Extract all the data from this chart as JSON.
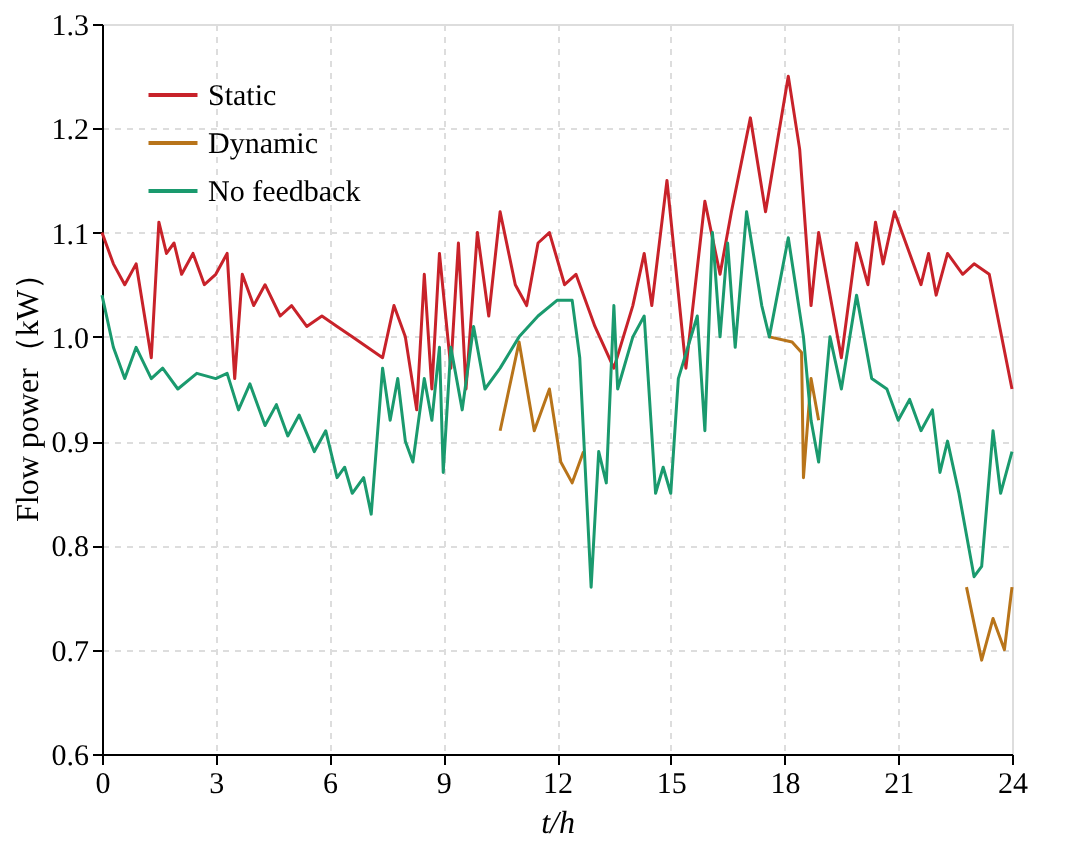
{
  "chart_data": {
    "type": "line",
    "xlabel": "t/h",
    "ylabel": "Flow power（kW）",
    "xlim": [
      0,
      24
    ],
    "xticks": [
      0,
      3,
      6,
      9,
      12,
      15,
      18,
      21,
      24
    ],
    "ylim": [
      0.6,
      1.3
    ],
    "yticks": [
      0.6,
      0.7,
      0.8,
      0.9,
      {
        "value": 1,
        "label": "1.0"
      },
      1.1,
      1.2,
      1.3
    ],
    "grid": true,
    "legend": "top left",
    "line_style": "solid",
    "marker": "none",
    "series": [
      {
        "name": "Static",
        "color": "#c8222a",
        "x": [
          0,
          0.3,
          0.6,
          0.9,
          1.3,
          1.5,
          1.7,
          1.9,
          2.1,
          2.4,
          2.7,
          3.0,
          3.3,
          3.5,
          3.7,
          4.0,
          4.3,
          4.7,
          5.0,
          5.4,
          5.8,
          6.2,
          6.6,
          7.0,
          7.4,
          7.7,
          8.0,
          8.3,
          8.5,
          8.7,
          8.9,
          9.2,
          9.4,
          9.6,
          9.9,
          10.2,
          10.5,
          10.9,
          11.2,
          11.5,
          11.8,
          12.2,
          12.5,
          13.0,
          13.5,
          14.0,
          14.3,
          14.5,
          14.9,
          15.4,
          15.9,
          16.3,
          16.6,
          17.1,
          17.5,
          18.1,
          18.4,
          18.7,
          18.9,
          19.5,
          19.9,
          20.2,
          20.4,
          20.6,
          20.9,
          21.6,
          21.8,
          22.0,
          22.3,
          22.7,
          23.0,
          23.4,
          24.0
        ],
        "values": [
          1.1,
          1.07,
          1.05,
          1.07,
          0.98,
          1.11,
          1.08,
          1.09,
          1.06,
          1.08,
          1.05,
          1.06,
          1.08,
          0.96,
          1.06,
          1.03,
          1.05,
          1.02,
          1.03,
          1.01,
          1.02,
          1.01,
          1.0,
          0.99,
          0.98,
          1.03,
          1.0,
          0.93,
          1.06,
          0.95,
          1.08,
          0.97,
          1.09,
          0.95,
          1.1,
          1.02,
          1.12,
          1.05,
          1.03,
          1.09,
          1.1,
          1.05,
          1.06,
          1.01,
          0.97,
          1.03,
          1.08,
          1.03,
          1.15,
          0.97,
          1.13,
          1.06,
          1.12,
          1.21,
          1.12,
          1.25,
          1.18,
          1.03,
          1.1,
          0.98,
          1.09,
          1.05,
          1.11,
          1.07,
          1.12,
          1.05,
          1.08,
          1.04,
          1.08,
          1.06,
          1.07,
          1.06,
          0.95
        ]
      },
      {
        "name": "Dynamic",
        "color": "#b8741a",
        "x": [
          10.5,
          11.0,
          11.4,
          11.8,
          12.1,
          12.4,
          12.7,
          12.9,
          17.6,
          18.2,
          18.45,
          18.5,
          18.7,
          18.9,
          19.0,
          22.8,
          23.2,
          23.5,
          23.8,
          24.0
        ],
        "values": [
          0.91,
          0.995,
          0.91,
          0.95,
          0.88,
          0.86,
          0.89,
          null,
          1.0,
          0.995,
          0.985,
          0.865,
          0.96,
          0.92,
          null,
          0.76,
          0.69,
          0.73,
          0.7,
          0.76
        ]
      },
      {
        "name": "No feedback",
        "color": "#1a9a6e",
        "x": [
          0,
          0.3,
          0.6,
          0.9,
          1.3,
          1.6,
          2.0,
          2.5,
          3.0,
          3.3,
          3.6,
          3.9,
          4.3,
          4.6,
          4.9,
          5.2,
          5.6,
          5.9,
          6.2,
          6.4,
          6.6,
          6.9,
          7.1,
          7.4,
          7.6,
          7.8,
          8.0,
          8.2,
          8.5,
          8.7,
          8.9,
          9.0,
          9.2,
          9.5,
          9.8,
          10.1,
          10.5,
          11.0,
          11.5,
          12.0,
          12.4,
          12.6,
          12.9,
          13.1,
          13.3,
          13.5,
          13.6,
          14.0,
          14.3,
          14.6,
          14.8,
          15.0,
          15.2,
          15.7,
          15.9,
          16.1,
          16.3,
          16.5,
          16.7,
          17.0,
          17.4,
          17.6,
          18.1,
          18.5,
          18.7,
          18.9,
          19.2,
          19.5,
          19.9,
          20.3,
          20.7,
          21.0,
          21.3,
          21.6,
          21.9,
          22.1,
          22.3,
          22.6,
          23.0,
          23.2,
          23.5,
          23.7,
          24.0
        ],
        "values": [
          1.04,
          0.99,
          0.96,
          0.99,
          0.96,
          0.97,
          0.95,
          0.965,
          0.96,
          0.965,
          0.93,
          0.955,
          0.915,
          0.935,
          0.905,
          0.925,
          0.89,
          0.91,
          0.865,
          0.875,
          0.85,
          0.865,
          0.83,
          0.97,
          0.92,
          0.96,
          0.9,
          0.88,
          0.96,
          0.92,
          0.99,
          0.87,
          0.99,
          0.93,
          1.01,
          0.95,
          0.97,
          1.0,
          1.02,
          1.035,
          1.035,
          0.98,
          0.76,
          0.89,
          0.86,
          1.03,
          0.95,
          1.0,
          1.02,
          0.85,
          0.875,
          0.85,
          0.96,
          1.02,
          0.91,
          1.1,
          1.0,
          1.09,
          0.99,
          1.12,
          1.03,
          1.0,
          1.095,
          1.0,
          0.92,
          0.88,
          1.0,
          0.95,
          1.04,
          0.96,
          0.95,
          0.92,
          0.94,
          0.91,
          0.93,
          0.87,
          0.9,
          0.85,
          0.77,
          0.78,
          0.91,
          0.85,
          0.89
        ]
      }
    ]
  }
}
